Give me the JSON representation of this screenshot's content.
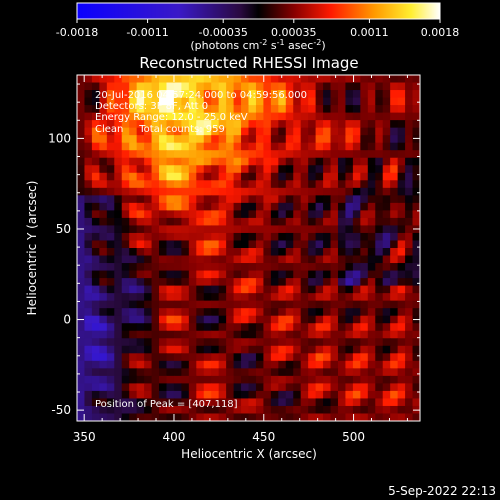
{
  "colorbar": {
    "ticks": [
      "-0.0018",
      "-0.0011",
      "-0.00035",
      "0.00035",
      "0.0011",
      "0.0018"
    ],
    "tick_values": [
      -0.0018,
      -0.0011,
      -0.00035,
      0.00035,
      0.0011,
      0.0018
    ],
    "range": [
      -0.0018,
      0.0018
    ],
    "units_main": "(photons cm",
    "units_sup1": "-2",
    "units_mid": " s",
    "units_sup2": "-1",
    "units_mid2": " asec",
    "units_sup3": "-2",
    "units_end": ")"
  },
  "chart_data": {
    "type": "heatmap",
    "title": "Reconstructed RHESSI Image",
    "xlabel": "Heliocentric X (arcsec)",
    "ylabel": "Heliocentric Y (arcsec)",
    "xlim": [
      346,
      537
    ],
    "ylim": [
      -56,
      135
    ],
    "x_ticks": [
      350,
      400,
      450,
      500
    ],
    "y_ticks": [
      -50,
      0,
      50,
      100
    ],
    "colormap": "rhessi-blue-black-red-yellow-white",
    "peak_position": [
      407,
      118
    ],
    "annotations": [
      "20-Jul-2016 04:57:24.000 to 04:59:56.000",
      "Detectors: 3F 8F, Att 0",
      "Energy Range: 12.0 - 25.0 keV",
      "Clean     Total counts: 959",
      "Position of Peak = [407,118]"
    ]
  },
  "footer": {
    "timestamp": "5-Sep-2022 22:13"
  }
}
